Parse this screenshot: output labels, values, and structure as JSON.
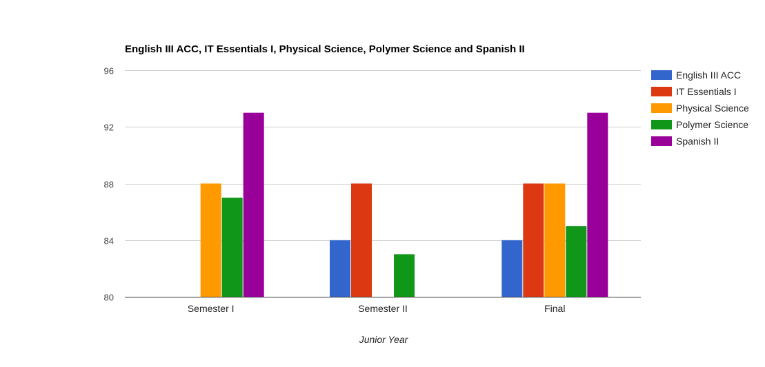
{
  "chart_data": {
    "type": "bar",
    "title": "English III ACC, IT Essentials I, Physical Science, Polymer Science and Spanish II",
    "xlabel": "Junior Year",
    "ylabel": "",
    "ylim": [
      80,
      96
    ],
    "yticks": [
      80,
      84,
      88,
      92,
      96
    ],
    "grid": true,
    "legend_position": "right",
    "categories": [
      "Semester I",
      "Semester II",
      "Final"
    ],
    "series": [
      {
        "name": "English III ACC",
        "color": "#3366cc",
        "values": [
          null,
          84,
          84
        ]
      },
      {
        "name": "IT Essentials I",
        "color": "#dc3912",
        "values": [
          null,
          88,
          88
        ]
      },
      {
        "name": "Physical Science",
        "color": "#ff9900",
        "values": [
          88,
          null,
          88
        ]
      },
      {
        "name": "Polymer Science",
        "color": "#109618",
        "values": [
          87,
          83,
          85
        ]
      },
      {
        "name": "Spanish II",
        "color": "#990099",
        "values": [
          93,
          null,
          93
        ]
      }
    ]
  }
}
